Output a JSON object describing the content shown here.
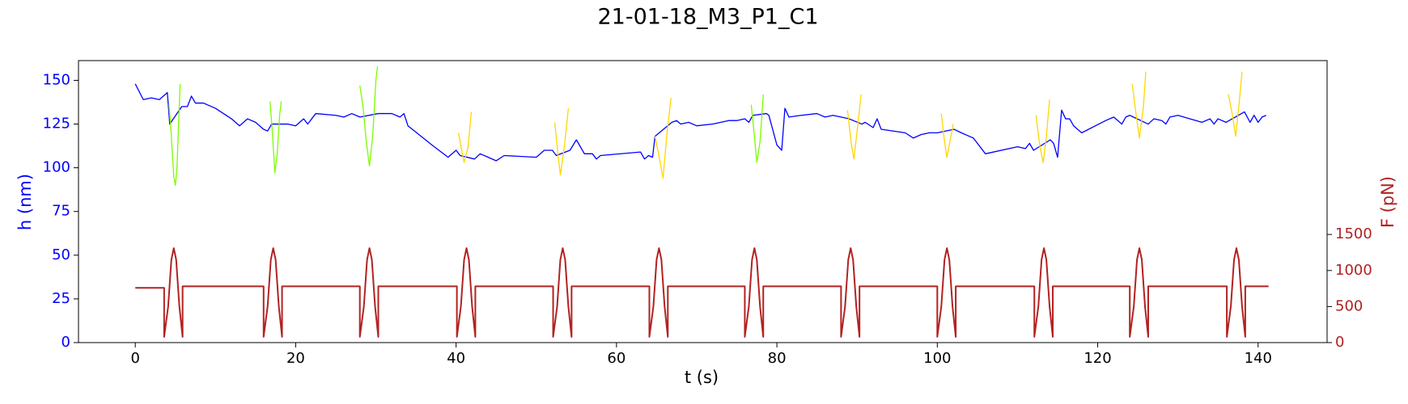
{
  "chart_data": {
    "type": "line",
    "title": "21-01-18_M3_P1_C1",
    "xlabel": "t (s)",
    "ylabel": "h (nm)",
    "y2label": "F (pN)",
    "xlim": [
      -7.08,
      148.6
    ],
    "xticks": [
      0,
      20,
      40,
      60,
      80,
      100,
      120,
      140
    ],
    "ylim": [
      0,
      161.3
    ],
    "yticks": [
      0,
      25,
      50,
      75,
      100,
      125,
      150
    ],
    "y2lim": [
      0,
      3912
    ],
    "y2ticks": [
      0,
      500,
      1000,
      1500
    ],
    "grid": false,
    "series": [
      {
        "color": "#0000ff",
        "axis": "y",
        "x": [
          0,
          1,
          2,
          3,
          4,
          4.3,
          5.8,
          6.5,
          7,
          7.5,
          8.5,
          10,
          12,
          13,
          14,
          15,
          16,
          16.5,
          17,
          18.4,
          19,
          20,
          21,
          21.5,
          22.5,
          25,
          26,
          27,
          28,
          30.3,
          31,
          32,
          33,
          33.5,
          34,
          37,
          39,
          40,
          40.5,
          42.3,
          43,
          44,
          45,
          46,
          50,
          51,
          52,
          52.5,
          54.2,
          55,
          56,
          57,
          57.5,
          58,
          63,
          63.5,
          64,
          64.5,
          64.8,
          66.9,
          67.5,
          68,
          69,
          70,
          72,
          73,
          74,
          75,
          76,
          76.5,
          77,
          78.7,
          79,
          80,
          80.6,
          81,
          81.5,
          83,
          85,
          86,
          87,
          88,
          89,
          90.6,
          91,
          92,
          92.5,
          93,
          96,
          97,
          98,
          99,
          100,
          102.1,
          103,
          104,
          104.5,
          106,
          110,
          111,
          111.5,
          112,
          114.1,
          114.5,
          115,
          115.5,
          116,
          116.5,
          117,
          118,
          121,
          122,
          123,
          123.5,
          124,
          126.3,
          127,
          128,
          128.5,
          129,
          130,
          133,
          134,
          134.5,
          135,
          136,
          138.3,
          139,
          139.5,
          140,
          140.5,
          141
        ],
        "values": [
          148,
          139,
          140,
          139,
          143,
          125,
          135,
          135,
          141,
          137,
          137,
          134,
          128,
          124,
          128,
          126,
          122,
          121,
          125,
          125,
          125,
          124,
          128,
          125,
          131,
          130,
          129,
          131,
          129,
          131,
          131,
          131,
          129,
          131,
          124,
          113,
          106,
          110,
          107,
          105,
          108,
          106,
          104,
          107,
          106,
          110,
          110,
          107,
          110,
          116,
          108,
          108,
          105,
          107,
          109,
          105,
          107,
          106,
          118,
          126,
          127,
          125,
          126,
          124,
          125,
          126,
          127,
          127,
          128,
          126,
          130,
          131,
          130,
          113,
          110,
          134,
          129,
          130,
          131,
          129,
          130,
          129,
          128,
          125,
          126,
          123,
          128,
          122,
          120,
          117,
          119,
          120,
          120,
          122,
          120,
          118,
          117,
          108,
          112,
          111,
          114,
          110,
          116,
          114,
          106,
          133,
          128,
          128,
          124,
          120,
          127,
          129,
          125,
          129,
          130,
          125,
          128,
          127,
          125,
          129,
          130,
          126,
          128,
          125,
          128,
          126,
          132,
          126,
          130,
          126,
          129,
          130
        ]
      },
      {
        "color": "#7cfc00",
        "axis": "y",
        "x": [
          4.2,
          4.4,
          4.6,
          4.8,
          5.0,
          5.2,
          5.4,
          5.6,
          null,
          16.8,
          17.1,
          17.4,
          17.7,
          18.0,
          18.2,
          null,
          28.0,
          28.4,
          28.8,
          29.2,
          29.6,
          30.0,
          30.2,
          null,
          76.8,
          77.2,
          77.5,
          77.9,
          78.3
        ],
        "values": [
          136,
          125,
          110,
          95,
          90,
          100,
          125,
          148,
          null,
          138,
          120,
          97,
          108,
          130,
          138,
          null,
          147,
          135,
          115,
          101,
          118,
          150,
          158,
          null,
          136,
          118,
          103,
          115,
          142
        ]
      },
      {
        "color": "#ffd700",
        "axis": "y",
        "x": [
          40.3,
          40.7,
          41.0,
          41.5,
          41.9,
          null,
          52.3,
          52.7,
          53.0,
          53.5,
          54.0,
          null,
          64.8,
          65.3,
          65.8,
          66.3,
          66.8,
          null,
          88.8,
          89.3,
          89.6,
          90.1,
          90.5,
          null,
          100.5,
          100.9,
          101.2,
          101.7,
          102.0,
          null,
          112.3,
          112.8,
          113.2,
          113.6,
          114.0,
          null,
          124.3,
          124.8,
          125.2,
          125.7,
          126.0,
          null,
          136.3,
          136.8,
          137.2,
          137.7,
          138.0
        ],
        "values": [
          120,
          110,
          103,
          112,
          132,
          null,
          126,
          108,
          96,
          112,
          134,
          null,
          118,
          107,
          94,
          120,
          140,
          null,
          133,
          113,
          105,
          125,
          142,
          null,
          131,
          115,
          106,
          118,
          125,
          null,
          130,
          112,
          103,
          118,
          139,
          null,
          148,
          130,
          117,
          135,
          155,
          null,
          142,
          130,
          118,
          140,
          155
        ]
      },
      {
        "color": "#b22222",
        "axis": "y2",
        "x": [
          0,
          3.6,
          3.6,
          4.1,
          4.5,
          4.8,
          5.1,
          5.5,
          5.9,
          5.9,
          16.0,
          16.0,
          16.5,
          16.9,
          17.2,
          17.5,
          17.9,
          18.3,
          18.3,
          28.0,
          28.0,
          28.5,
          28.9,
          29.2,
          29.5,
          29.9,
          30.3,
          30.3,
          40.1,
          40.1,
          40.6,
          41.0,
          41.3,
          41.6,
          42.0,
          42.4,
          42.4,
          52.1,
          52.1,
          52.6,
          53.0,
          53.3,
          53.6,
          54.0,
          54.4,
          54.4,
          64.1,
          64.1,
          64.6,
          65.0,
          65.3,
          65.6,
          66.0,
          66.4,
          66.4,
          76.0,
          76.0,
          76.5,
          76.9,
          77.2,
          77.5,
          77.9,
          78.3,
          78.3,
          88.0,
          88.0,
          88.5,
          88.9,
          89.2,
          89.5,
          89.9,
          90.3,
          90.3,
          100.0,
          100.0,
          100.5,
          100.9,
          101.2,
          101.5,
          101.9,
          102.3,
          102.3,
          112.1,
          112.1,
          112.6,
          113.0,
          113.3,
          113.6,
          114.0,
          114.4,
          114.4,
          124.0,
          124.0,
          124.5,
          124.9,
          125.2,
          125.5,
          125.9,
          126.3,
          126.3,
          136.1,
          136.1,
          136.6,
          137.0,
          137.3,
          137.6,
          138.0,
          138.4,
          138.4,
          141.3
        ],
        "values": [
          760,
          760,
          80,
          500,
          1150,
          1310,
          1150,
          500,
          80,
          780,
          780,
          80,
          500,
          1150,
          1310,
          1150,
          500,
          80,
          780,
          780,
          80,
          500,
          1150,
          1310,
          1150,
          500,
          80,
          780,
          780,
          80,
          500,
          1150,
          1310,
          1150,
          500,
          80,
          780,
          780,
          80,
          500,
          1150,
          1310,
          1150,
          500,
          80,
          780,
          780,
          80,
          500,
          1150,
          1310,
          1150,
          500,
          80,
          780,
          780,
          80,
          500,
          1150,
          1310,
          1150,
          500,
          80,
          780,
          780,
          80,
          500,
          1150,
          1310,
          1150,
          500,
          80,
          780,
          780,
          80,
          500,
          1150,
          1310,
          1150,
          500,
          80,
          780,
          780,
          80,
          500,
          1150,
          1310,
          1150,
          500,
          80,
          780,
          780,
          80,
          500,
          1150,
          1310,
          1150,
          500,
          80,
          780,
          780,
          80,
          500,
          1150,
          1310,
          1150,
          500,
          80,
          780,
          780
        ]
      }
    ]
  }
}
